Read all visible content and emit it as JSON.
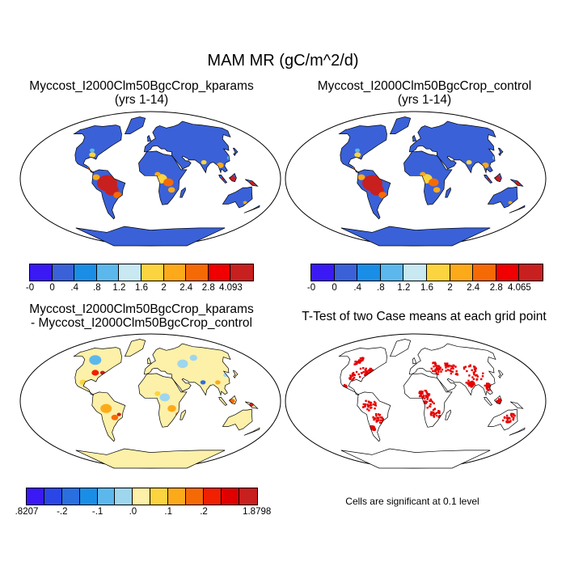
{
  "title": "MAM MR (gC/m^2/d)",
  "panels": [
    {
      "title_line1": "Myccost_I2000Clm50BgcCrop_kparams",
      "title_line2": "(yrs 1-14)",
      "fill": "#3a61d8",
      "kind": "abs"
    },
    {
      "title_line1": "Myccost_I2000Clm50BgcCrop_control",
      "title_line2": "(yrs 1-14)",
      "fill": "#3a61d8",
      "kind": "abs"
    },
    {
      "title_line1": "Myccost_I2000Clm50BgcCrop_kparams",
      "title_line2": "- Myccost_I2000Clm50BgcCrop_control",
      "fill": "#fdf0a8",
      "kind": "diff"
    },
    {
      "title": "T-Test of two Case means at each grid point",
      "fill": "#ffffff",
      "kind": "ttest"
    }
  ],
  "colorbars": [
    {
      "colors": [
        "#3b19f4",
        "#3a61d8",
        "#1a8ee6",
        "#5cb8ec",
        "#c8e8f2",
        "#fbd440",
        "#fdaa1a",
        "#f66a06",
        "#f00000",
        "#c81f1f"
      ],
      "ticks": [
        "-0",
        "0",
        ".4",
        ".8",
        "1.2",
        "1.6",
        "2",
        "2.4",
        "2.8",
        "4.093"
      ]
    },
    {
      "colors": [
        "#3b19f4",
        "#3a61d8",
        "#1a8ee6",
        "#5cb8ec",
        "#c8e8f2",
        "#fbd440",
        "#fdaa1a",
        "#f66a06",
        "#f00000",
        "#c81f1f"
      ],
      "ticks": [
        "-0",
        "0",
        ".4",
        ".8",
        "1.2",
        "1.6",
        "2",
        "2.4",
        "2.8",
        "4.065"
      ]
    },
    {
      "colors": [
        "#3b19f4",
        "#2b46e6",
        "#2a6fe0",
        "#1a8ee6",
        "#5cb8ec",
        "#9ed6ee",
        "#fdf0a8",
        "#fbd440",
        "#fdaa1a",
        "#f66a06",
        "#f02000",
        "#e00000",
        "#c81f1f"
      ],
      "ticks": [
        ".8207",
        "-.2",
        "-.1",
        ".0",
        ".1",
        ".2",
        "1.8798"
      ],
      "tick_slots": [
        0,
        2,
        4,
        6,
        8,
        10,
        13
      ]
    }
  ],
  "significance_note": "Cells are significant at 0.1 level",
  "colors": {
    "map_outline": "#000000",
    "ttest_signif": "#e60000"
  }
}
